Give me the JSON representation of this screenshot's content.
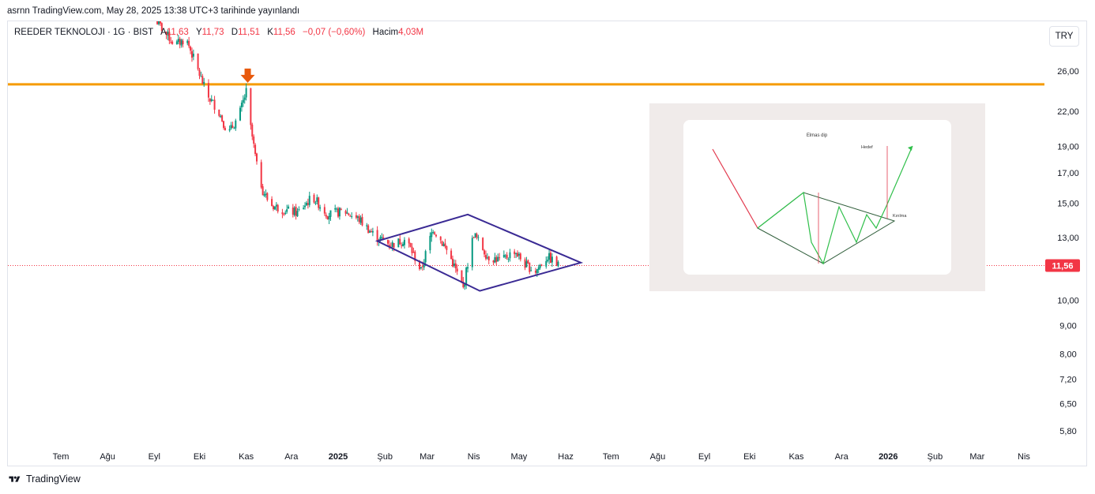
{
  "header": {
    "publish_line": "asrnn TradingView.com, May 28, 2025 13:38 UTC+3 tarihinde yayınlandı"
  },
  "legend": {
    "symbol": "REEDER TEKNOLOJI · 1G · BIST",
    "open_label": "A",
    "open": "11,63",
    "high_label": "Y",
    "high": "11,73",
    "low_label": "D",
    "low": "11,51",
    "close_label": "K",
    "close": "11,56",
    "change": "−0,07 (−0,60%)",
    "volume_label": "Hacim",
    "volume": "4,03M"
  },
  "currency_button": "TRY",
  "footer": {
    "brand": "TradingView"
  },
  "colors": {
    "up": "#089981",
    "down": "#f23645",
    "resistance": "#f59b00",
    "arrow": "#e8590c",
    "diamond": "#3a2a94",
    "price_line": "#f23645"
  },
  "chart_data": {
    "type": "candlestick",
    "scale": "log",
    "ylim": [
      5.45,
      32
    ],
    "yticks": [
      {
        "v": 26,
        "label": "26,00"
      },
      {
        "v": 22,
        "label": "22,00"
      },
      {
        "v": 19,
        "label": "19,00"
      },
      {
        "v": 17,
        "label": "17,00"
      },
      {
        "v": 15,
        "label": "15,00"
      },
      {
        "v": 13,
        "label": "13,00"
      },
      {
        "v": 10,
        "label": "10,00"
      },
      {
        "v": 9,
        "label": "9,00"
      },
      {
        "v": 8,
        "label": "8,00"
      },
      {
        "v": 7.2,
        "label": "7,20"
      },
      {
        "v": 6.5,
        "label": "6,50"
      },
      {
        "v": 5.8,
        "label": "5,80"
      }
    ],
    "xticks": [
      {
        "d": "2024-07-01",
        "label": "Tem"
      },
      {
        "d": "2024-08-01",
        "label": "Ağu"
      },
      {
        "d": "2024-09-01",
        "label": "Eyl"
      },
      {
        "d": "2024-10-01",
        "label": "Eki"
      },
      {
        "d": "2024-11-01",
        "label": "Kas"
      },
      {
        "d": "2024-12-01",
        "label": "Ara"
      },
      {
        "d": "2025-01-01",
        "label": "2025"
      },
      {
        "d": "2025-02-01",
        "label": "Şub"
      },
      {
        "d": "2025-03-01",
        "label": "Mar"
      },
      {
        "d": "2025-04-01",
        "label": "Nis"
      },
      {
        "d": "2025-05-01",
        "label": "May"
      },
      {
        "d": "2025-06-01",
        "label": "Haz"
      },
      {
        "d": "2025-07-01",
        "label": "Tem"
      },
      {
        "d": "2025-08-01",
        "label": "Ağu"
      },
      {
        "d": "2025-09-01",
        "label": "Eyl"
      },
      {
        "d": "2025-10-01",
        "label": "Eki"
      },
      {
        "d": "2025-11-01",
        "label": "Kas"
      },
      {
        "d": "2025-12-01",
        "label": "Ara"
      },
      {
        "d": "2026-01-01",
        "label": "2026"
      },
      {
        "d": "2026-02-01",
        "label": "Şub"
      },
      {
        "d": "2026-03-01",
        "label": "Mar"
      },
      {
        "d": "2026-04-01",
        "label": "Nis"
      }
    ],
    "price_path": [
      [
        "2024-09-01",
        32.5
      ],
      [
        "2024-09-08",
        30.5
      ],
      [
        "2024-09-15",
        29.0
      ],
      [
        "2024-09-22",
        29.8
      ],
      [
        "2024-09-29",
        26.5
      ],
      [
        "2024-10-06",
        23.5
      ],
      [
        "2024-10-13",
        22.2
      ],
      [
        "2024-10-20",
        20.0
      ],
      [
        "2024-10-27",
        21.5
      ],
      [
        "2024-11-02",
        24.3
      ],
      [
        "2024-11-04",
        20.5
      ],
      [
        "2024-11-08",
        17.5
      ],
      [
        "2024-11-12",
        15.8
      ],
      [
        "2024-11-17",
        14.9
      ],
      [
        "2024-11-25",
        14.6
      ],
      [
        "2024-12-05",
        14.4
      ],
      [
        "2024-12-15",
        15.4
      ],
      [
        "2024-12-25",
        14.3
      ],
      [
        "2025-01-05",
        14.5
      ],
      [
        "2025-01-15",
        14.0
      ],
      [
        "2025-01-25",
        13.1
      ],
      [
        "2025-02-05",
        12.6
      ],
      [
        "2025-02-15",
        12.9
      ],
      [
        "2025-02-25",
        11.3
      ],
      [
        "2025-03-05",
        13.5
      ],
      [
        "2025-03-15",
        12.2
      ],
      [
        "2025-03-25",
        10.5
      ],
      [
        "2025-04-01",
        13.2
      ],
      [
        "2025-04-10",
        12.0
      ],
      [
        "2025-04-20",
        11.8
      ],
      [
        "2025-04-28",
        12.3
      ],
      [
        "2025-05-05",
        11.6
      ],
      [
        "2025-05-12",
        11.3
      ],
      [
        "2025-05-20",
        12.0
      ],
      [
        "2025-05-27",
        11.56
      ]
    ],
    "last_price": {
      "value": 11.56,
      "label": "11,56"
    },
    "resistance_level": 24.6,
    "arrow_marker": {
      "date": "2024-11-02",
      "price": 24.6
    },
    "diamond": [
      [
        "2025-01-27",
        12.8
      ],
      [
        "2025-03-28",
        14.3
      ],
      [
        "2025-06-11",
        11.7
      ],
      [
        "2025-04-05",
        10.4
      ]
    ],
    "inset": {
      "title": "Elmas dip",
      "target_label": "Hedef",
      "break_label": "Kırılma"
    }
  }
}
